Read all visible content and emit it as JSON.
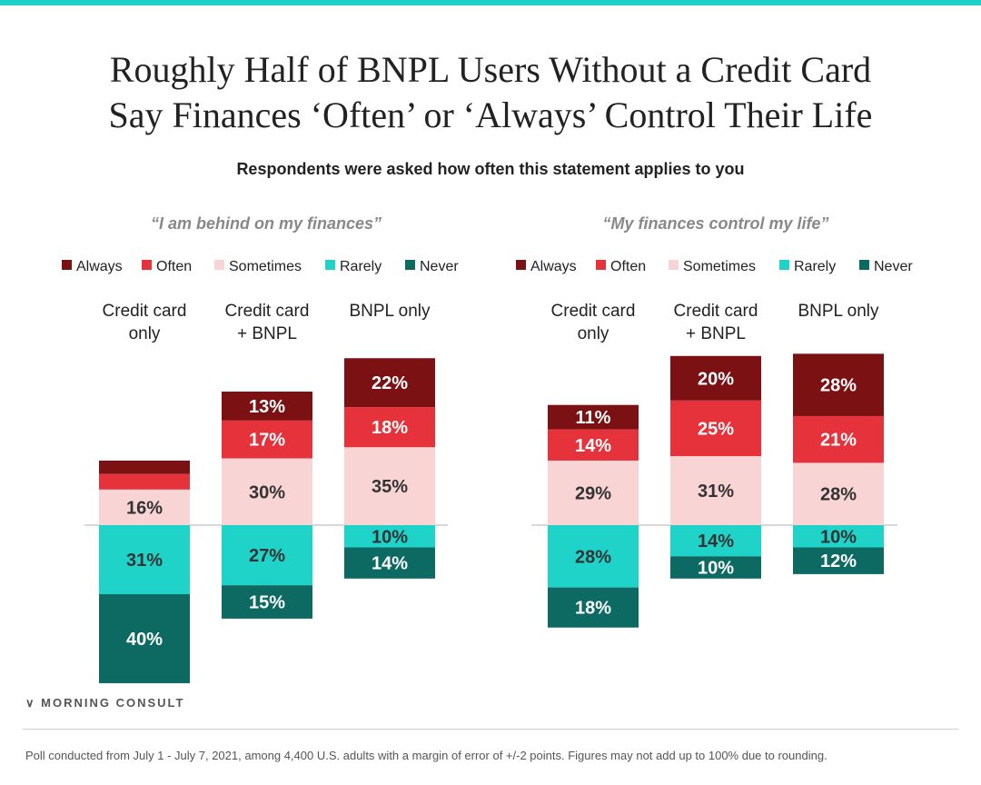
{
  "title": [
    "Roughly Half of BNPL Users Without a Credit Card",
    "Say Finances ‘Often’ or ‘Always’ Control Their Life"
  ],
  "subtitle": "Respondents were asked how often this statement applies to you",
  "brand": "MORNING CONSULT",
  "footnote": "Poll conducted from July 1 - July 7, 2021, among 4,400 U.S. adults with a margin of error of +/-2 points. Figures may not add up to 100% due to rounding.",
  "colors": {
    "Always": "#7b1113",
    "Often": "#e5323b",
    "Sometimes": "#f9d4d4",
    "Rarely": "#1fd3c9",
    "Never": "#0c6a63"
  },
  "chart_data": [
    {
      "type": "bar",
      "stacked": "diverging",
      "title": "“I am behind on my finances”",
      "legend": [
        "Always",
        "Often",
        "Sometimes",
        "Rarely",
        "Never"
      ],
      "legend_placement": "top",
      "categories": [
        [
          "Credit card",
          "only"
        ],
        [
          "Credit card",
          "+ BNPL"
        ],
        [
          "BNPL only"
        ]
      ],
      "series": [
        {
          "name": "Always",
          "values": [
            6,
            13,
            22
          ],
          "labels": [
            "",
            "13%",
            "22%"
          ]
        },
        {
          "name": "Often",
          "values": [
            7,
            17,
            18
          ],
          "labels": [
            "",
            "17%",
            "18%"
          ]
        },
        {
          "name": "Sometimes",
          "values": [
            16,
            30,
            35
          ],
          "labels": [
            "16%",
            "30%",
            "35%"
          ]
        },
        {
          "name": "Rarely",
          "values": [
            31,
            27,
            10
          ],
          "labels": [
            "31%",
            "27%",
            "10%"
          ]
        },
        {
          "name": "Never",
          "values": [
            40,
            15,
            14
          ],
          "labels": [
            "40%",
            "15%",
            "14%"
          ]
        }
      ]
    },
    {
      "type": "bar",
      "stacked": "diverging",
      "title": "“My finances control my life”",
      "legend": [
        "Always",
        "Often",
        "Sometimes",
        "Rarely",
        "Never"
      ],
      "legend_placement": "top",
      "categories": [
        [
          "Credit card",
          "only"
        ],
        [
          "Credit card",
          "+ BNPL"
        ],
        [
          "BNPL only"
        ]
      ],
      "series": [
        {
          "name": "Always",
          "values": [
            11,
            20,
            28
          ],
          "labels": [
            "11%",
            "20%",
            "28%"
          ]
        },
        {
          "name": "Often",
          "values": [
            14,
            25,
            21
          ],
          "labels": [
            "14%",
            "25%",
            "21%"
          ]
        },
        {
          "name": "Sometimes",
          "values": [
            29,
            31,
            28
          ],
          "labels": [
            "29%",
            "31%",
            "28%"
          ]
        },
        {
          "name": "Rarely",
          "values": [
            28,
            14,
            10
          ],
          "labels": [
            "28%",
            "14%",
            "10%"
          ]
        },
        {
          "name": "Never",
          "values": [
            18,
            10,
            12
          ],
          "labels": [
            "18%",
            "10%",
            "12%"
          ]
        }
      ]
    }
  ]
}
